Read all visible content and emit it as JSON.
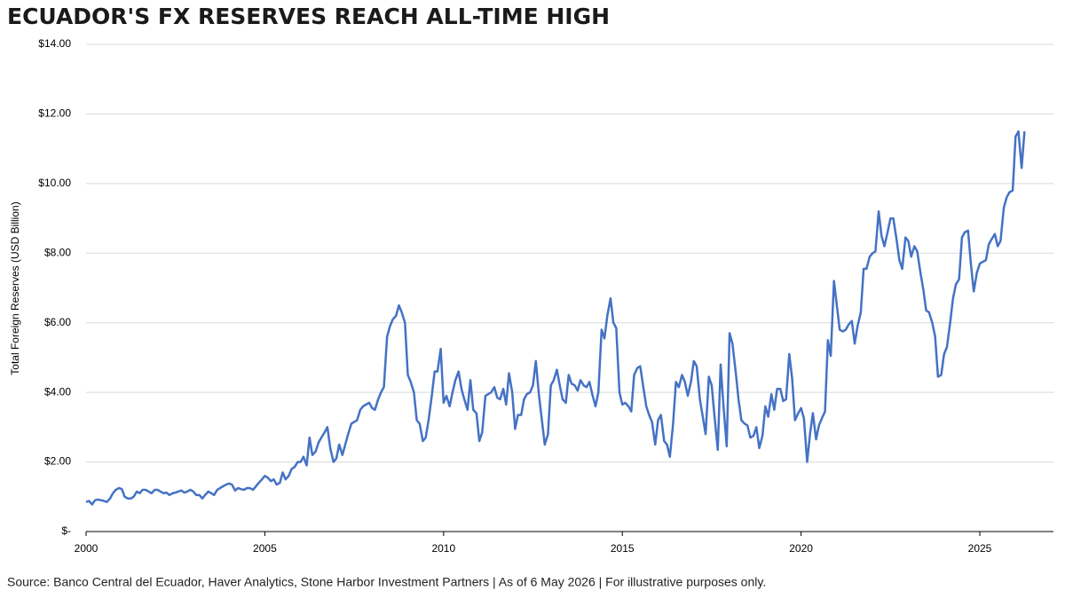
{
  "chart_data": {
    "type": "line",
    "title": "ECUADOR'S FX RESERVES REACH ALL-TIME HIGH",
    "y_label": "Total Foreign Reserves (USD Billion)",
    "footnote": "Source: Banco Central del Ecuador, Haver Analytics, Stone Harbor Investment Partners  |  As of 6 May 2026  |  For illustrative purposes only.",
    "color": "#4472c4",
    "grid": true,
    "xlim": [
      2000,
      2027.06
    ],
    "ylim": [
      0,
      14
    ],
    "xticks": [
      2000,
      2005,
      2010,
      2015,
      2020,
      2025
    ],
    "yticks": [
      {
        "value": 0,
        "label": "$-"
      },
      {
        "value": 2,
        "label": "$2.00"
      },
      {
        "value": 4,
        "label": "$4.00"
      },
      {
        "value": 6,
        "label": "$6.00"
      },
      {
        "value": 8,
        "label": "$8.00"
      },
      {
        "value": 10,
        "label": "$10.00"
      },
      {
        "value": 12,
        "label": "$12.00"
      },
      {
        "value": 14,
        "label": "$14.00"
      }
    ],
    "x": [
      2000,
      2000.08,
      2000.17,
      2000.25,
      2000.33,
      2000.42,
      2000.5,
      2000.58,
      2000.67,
      2000.75,
      2000.83,
      2000.92,
      2001,
      2001.08,
      2001.17,
      2001.25,
      2001.33,
      2001.42,
      2001.5,
      2001.58,
      2001.67,
      2001.75,
      2001.83,
      2001.92,
      2002,
      2002.08,
      2002.17,
      2002.25,
      2002.33,
      2002.42,
      2002.5,
      2002.58,
      2002.67,
      2002.75,
      2002.83,
      2002.92,
      2003,
      2003.08,
      2003.17,
      2003.25,
      2003.33,
      2003.42,
      2003.5,
      2003.58,
      2003.67,
      2003.75,
      2003.83,
      2003.92,
      2004,
      2004.08,
      2004.17,
      2004.25,
      2004.33,
      2004.42,
      2004.5,
      2004.58,
      2004.67,
      2004.75,
      2004.83,
      2004.92,
      2005,
      2005.08,
      2005.17,
      2005.25,
      2005.33,
      2005.42,
      2005.5,
      2005.58,
      2005.67,
      2005.75,
      2005.83,
      2005.92,
      2006,
      2006.08,
      2006.17,
      2006.25,
      2006.33,
      2006.42,
      2006.5,
      2006.58,
      2006.67,
      2006.75,
      2006.83,
      2006.92,
      2007,
      2007.08,
      2007.17,
      2007.25,
      2007.33,
      2007.42,
      2007.5,
      2007.58,
      2007.67,
      2007.75,
      2007.83,
      2007.92,
      2008,
      2008.08,
      2008.17,
      2008.25,
      2008.33,
      2008.42,
      2008.5,
      2008.58,
      2008.67,
      2008.75,
      2008.83,
      2008.92,
      2009,
      2009.08,
      2009.17,
      2009.25,
      2009.33,
      2009.42,
      2009.5,
      2009.58,
      2009.67,
      2009.75,
      2009.83,
      2009.92,
      2010,
      2010.08,
      2010.17,
      2010.25,
      2010.33,
      2010.42,
      2010.5,
      2010.58,
      2010.67,
      2010.75,
      2010.83,
      2010.92,
      2011,
      2011.08,
      2011.17,
      2011.25,
      2011.33,
      2011.42,
      2011.5,
      2011.58,
      2011.67,
      2011.75,
      2011.83,
      2011.92,
      2012,
      2012.08,
      2012.17,
      2012.25,
      2012.33,
      2012.42,
      2012.5,
      2012.58,
      2012.67,
      2012.75,
      2012.83,
      2012.92,
      2013,
      2013.08,
      2013.17,
      2013.25,
      2013.33,
      2013.42,
      2013.5,
      2013.58,
      2013.67,
      2013.75,
      2013.83,
      2013.92,
      2014,
      2014.08,
      2014.17,
      2014.25,
      2014.33,
      2014.42,
      2014.5,
      2014.58,
      2014.67,
      2014.75,
      2014.83,
      2014.92,
      2015,
      2015.08,
      2015.17,
      2015.25,
      2015.33,
      2015.42,
      2015.5,
      2015.58,
      2015.67,
      2015.75,
      2015.83,
      2015.92,
      2016,
      2016.08,
      2016.17,
      2016.25,
      2016.33,
      2016.42,
      2016.5,
      2016.58,
      2016.67,
      2016.75,
      2016.83,
      2016.92,
      2017,
      2017.08,
      2017.17,
      2017.25,
      2017.33,
      2017.42,
      2017.5,
      2017.58,
      2017.67,
      2017.75,
      2017.83,
      2017.92,
      2018,
      2018.08,
      2018.17,
      2018.25,
      2018.33,
      2018.42,
      2018.5,
      2018.58,
      2018.67,
      2018.75,
      2018.83,
      2018.92,
      2019,
      2019.08,
      2019.17,
      2019.25,
      2019.33,
      2019.42,
      2019.5,
      2019.58,
      2019.67,
      2019.75,
      2019.83,
      2019.92,
      2020,
      2020.08,
      2020.17,
      2020.25,
      2020.33,
      2020.42,
      2020.5,
      2020.58,
      2020.67,
      2020.75,
      2020.83,
      2020.92,
      2021,
      2021.08,
      2021.17,
      2021.25,
      2021.33,
      2021.42,
      2021.5,
      2021.58,
      2021.67,
      2021.75,
      2021.83,
      2021.92,
      2022,
      2022.08,
      2022.17,
      2022.25,
      2022.33,
      2022.42,
      2022.5,
      2022.58,
      2022.67,
      2022.75,
      2022.83,
      2022.92,
      2023,
      2023.08,
      2023.17,
      2023.25,
      2023.33,
      2023.42,
      2023.5,
      2023.58,
      2023.67,
      2023.75,
      2023.83,
      2023.92,
      2024,
      2024.08,
      2024.17,
      2024.25,
      2024.33,
      2024.42,
      2024.5,
      2024.58,
      2024.67,
      2024.75,
      2024.83,
      2024.92,
      2025,
      2025.08,
      2025.17,
      2025.25,
      2025.33,
      2025.42,
      2025.5,
      2025.58,
      2025.67,
      2025.75,
      2025.83,
      2025.92,
      2026,
      2026.08,
      2026.17,
      2026.25
    ],
    "values": [
      0.85,
      0.88,
      0.78,
      0.9,
      0.92,
      0.9,
      0.88,
      0.85,
      0.95,
      1.1,
      1.2,
      1.25,
      1.22,
      1.0,
      0.95,
      0.95,
      1.0,
      1.15,
      1.1,
      1.2,
      1.2,
      1.15,
      1.1,
      1.2,
      1.2,
      1.15,
      1.1,
      1.12,
      1.05,
      1.1,
      1.12,
      1.15,
      1.18,
      1.12,
      1.15,
      1.2,
      1.15,
      1.05,
      1.05,
      0.95,
      1.05,
      1.15,
      1.1,
      1.05,
      1.2,
      1.25,
      1.3,
      1.35,
      1.38,
      1.35,
      1.18,
      1.25,
      1.22,
      1.2,
      1.25,
      1.25,
      1.2,
      1.3,
      1.4,
      1.5,
      1.6,
      1.55,
      1.45,
      1.5,
      1.35,
      1.4,
      1.7,
      1.5,
      1.6,
      1.8,
      1.85,
      2.0,
      2.0,
      2.15,
      1.9,
      2.7,
      2.2,
      2.3,
      2.55,
      2.7,
      2.85,
      3.0,
      2.4,
      2.0,
      2.1,
      2.5,
      2.2,
      2.5,
      2.8,
      3.1,
      3.15,
      3.2,
      3.5,
      3.6,
      3.65,
      3.7,
      3.55,
      3.5,
      3.8,
      4.0,
      4.15,
      5.6,
      5.9,
      6.1,
      6.2,
      6.5,
      6.3,
      6.0,
      4.5,
      4.3,
      4.0,
      3.2,
      3.1,
      2.6,
      2.7,
      3.2,
      3.9,
      4.6,
      4.6,
      5.25,
      3.7,
      3.9,
      3.6,
      4.0,
      4.35,
      4.6,
      4.1,
      3.8,
      3.5,
      4.35,
      3.5,
      3.4,
      2.6,
      2.85,
      3.9,
      3.95,
      4.0,
      4.15,
      3.85,
      3.8,
      4.1,
      3.65,
      4.55,
      4.0,
      2.95,
      3.35,
      3.35,
      3.8,
      3.95,
      4.0,
      4.2,
      4.9,
      3.9,
      3.2,
      2.5,
      2.8,
      4.2,
      4.35,
      4.65,
      4.2,
      3.8,
      3.7,
      4.5,
      4.25,
      4.2,
      4.05,
      4.35,
      4.2,
      4.15,
      4.3,
      3.9,
      3.6,
      4.0,
      5.8,
      5.55,
      6.2,
      6.7,
      6.0,
      5.85,
      4.0,
      3.65,
      3.7,
      3.6,
      3.45,
      4.5,
      4.7,
      4.75,
      4.2,
      3.6,
      3.35,
      3.15,
      2.5,
      3.2,
      3.35,
      2.6,
      2.5,
      2.15,
      3.1,
      4.3,
      4.15,
      4.5,
      4.3,
      3.9,
      4.3,
      4.9,
      4.75,
      3.8,
      3.3,
      2.8,
      4.45,
      4.2,
      3.3,
      2.35,
      4.8,
      3.6,
      2.45,
      5.7,
      5.4,
      4.6,
      3.8,
      3.2,
      3.1,
      3.05,
      2.7,
      2.75,
      3.0,
      2.4,
      2.75,
      3.6,
      3.3,
      3.95,
      3.5,
      4.1,
      4.1,
      3.75,
      3.8,
      5.1,
      4.4,
      3.2,
      3.4,
      3.55,
      3.25,
      2.0,
      2.8,
      3.4,
      2.65,
      3.05,
      3.25,
      3.45,
      5.5,
      5.05,
      7.2,
      6.5,
      5.8,
      5.75,
      5.8,
      5.95,
      6.05,
      5.4,
      5.9,
      6.3,
      7.55,
      7.55,
      7.9,
      8.0,
      8.05,
      9.2,
      8.5,
      8.2,
      8.6,
      9.0,
      9.0,
      8.4,
      7.8,
      7.55,
      8.45,
      8.35,
      7.9,
      8.2,
      8.05,
      7.5,
      6.95,
      6.35,
      6.3,
      6.0,
      5.6,
      4.45,
      4.5,
      5.1,
      5.3,
      6.0,
      6.7,
      7.1,
      7.25,
      8.45,
      8.6,
      8.65,
      7.7,
      6.9,
      7.45,
      7.7,
      7.75,
      7.8,
      8.25,
      8.4,
      8.55,
      8.2,
      8.35,
      9.3,
      9.6,
      9.75,
      9.8,
      11.35,
      11.5,
      10.45,
      11.5
    ]
  }
}
